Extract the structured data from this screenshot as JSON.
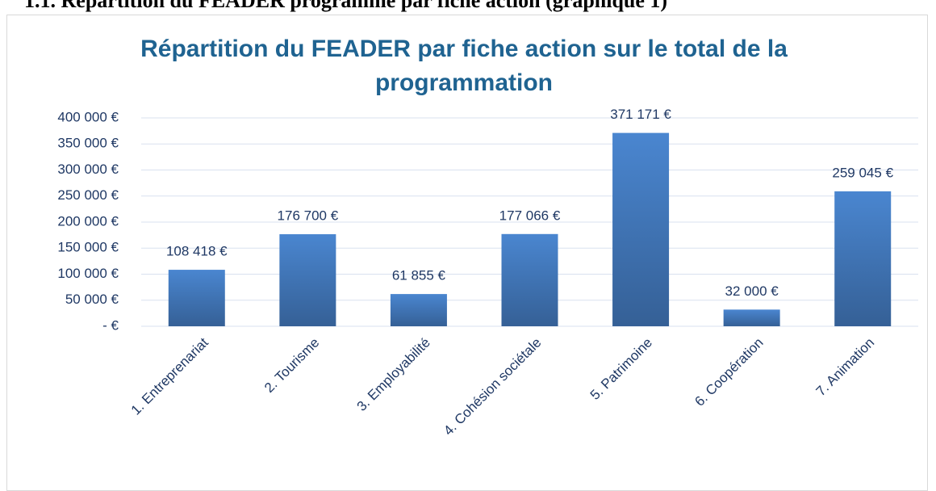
{
  "heading": "1.1. Répartition du FEADER programmé par fiche action (graphique 1)",
  "chart_data": {
    "type": "bar",
    "title": "Répartition du FEADER par fiche action sur le total de la programmation",
    "categories": [
      "1. Entreprenariat",
      "2. Tourisme",
      "3. Employabilité",
      "4. Cohésion sociétale",
      "5. Patrimoine",
      "6. Coopération",
      "7. Animation"
    ],
    "values": [
      108418,
      176700,
      61855,
      177066,
      371171,
      32000,
      259045
    ],
    "value_labels": [
      "108 418 €",
      "176 700 €",
      "61 855 €",
      "177 066 €",
      "371 171 €",
      "32 000 €",
      "259 045 €"
    ],
    "color": "#4a86d0",
    "ylim": [
      0,
      400000
    ],
    "yticks": [
      {
        "value": 0,
        "label": "-  €"
      },
      {
        "value": 50000,
        "label": "50 000 €"
      },
      {
        "value": 100000,
        "label": "100 000 €"
      },
      {
        "value": 150000,
        "label": "150 000 €"
      },
      {
        "value": 200000,
        "label": "200 000 €"
      },
      {
        "value": 250000,
        "label": "250 000 €"
      },
      {
        "value": 300000,
        "label": "300 000 €"
      },
      {
        "value": 350000,
        "label": "350 000 €"
      },
      {
        "value": 400000,
        "label": "400 000 €"
      }
    ],
    "grid": true
  }
}
